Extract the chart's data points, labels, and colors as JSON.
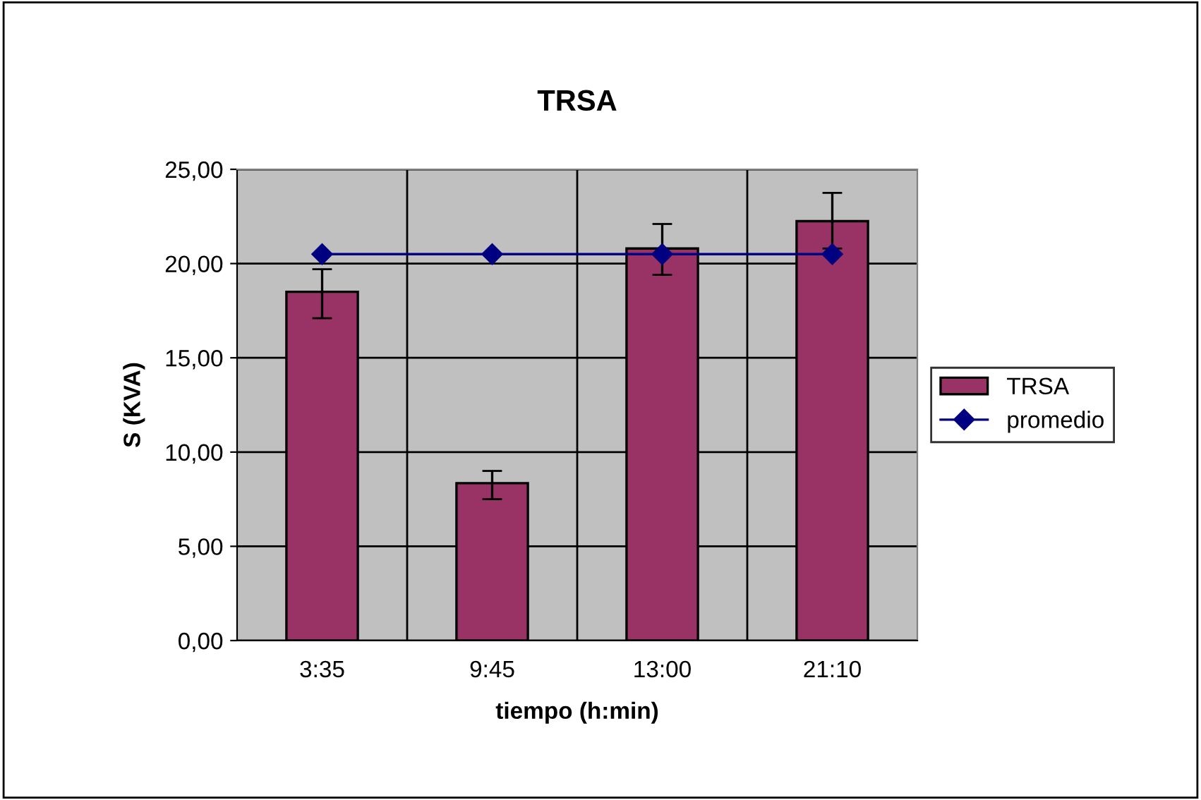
{
  "chart_data": {
    "type": "bar",
    "title": "TRSA",
    "xlabel": "tiempo (h:min)",
    "ylabel": "S (KVA)",
    "categories": [
      "3:35",
      "9:45",
      "13:00",
      "21:10"
    ],
    "series": [
      {
        "name": "TRSA",
        "color": "#993366",
        "values": [
          18.5,
          8.35,
          20.8,
          22.25
        ],
        "errors": [
          [
            17.1,
            19.7
          ],
          [
            7.5,
            9.0
          ],
          [
            19.4,
            22.1
          ],
          [
            20.8,
            23.75
          ]
        ]
      },
      {
        "name": "promedio",
        "type": "line",
        "color": "#000080",
        "values": [
          20.5,
          20.5,
          20.5,
          20.5
        ],
        "marker": "diamond"
      }
    ],
    "ylim": [
      0,
      25
    ],
    "yticks": [
      {
        "value": 0,
        "label": "0,00"
      },
      {
        "value": 5,
        "label": "5,00"
      },
      {
        "value": 10,
        "label": "10,00"
      },
      {
        "value": 15,
        "label": "15,00"
      },
      {
        "value": 20,
        "label": "20,00"
      },
      {
        "value": 25,
        "label": "25,00"
      }
    ],
    "grid": true,
    "legend": "right"
  }
}
